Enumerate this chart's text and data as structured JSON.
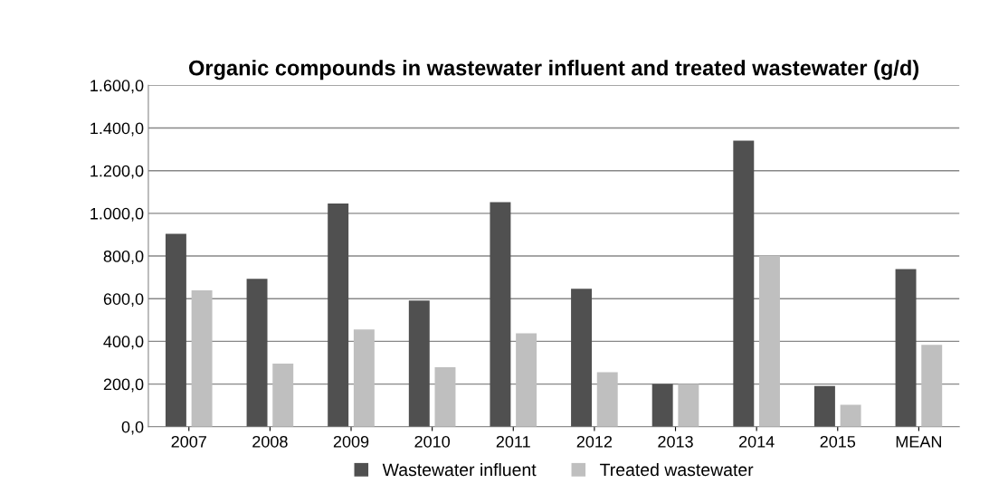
{
  "chart_data": {
    "type": "bar",
    "title": "Organic compounds in wastewater influent and treated wastewater (g/d)",
    "categories": [
      "2007",
      "2008",
      "2009",
      "2010",
      "2011",
      "2012",
      "2013",
      "2014",
      "2015",
      "MEAN"
    ],
    "series": [
      {
        "name": "Wastewater influent",
        "color": "#505050",
        "values": [
          904,
          693,
          1046,
          591,
          1052,
          647,
          200,
          1341,
          191,
          739
        ]
      },
      {
        "name": "Treated wastewater",
        "color": "#bfbfbf",
        "values": [
          639,
          296,
          456,
          279,
          438,
          255,
          200,
          801,
          103,
          384
        ]
      }
    ],
    "ylim": [
      0,
      1600
    ],
    "yticks": [
      {
        "value": 0,
        "label": "0,0"
      },
      {
        "value": 200,
        "label": "200,0"
      },
      {
        "value": 400,
        "label": "400,0"
      },
      {
        "value": 600,
        "label": "600,0"
      },
      {
        "value": 800,
        "label": "800,0"
      },
      {
        "value": 1000,
        "label": "1.000,0"
      },
      {
        "value": 1200,
        "label": "1.200,0"
      },
      {
        "value": 1400,
        "label": "1.400,0"
      },
      {
        "value": 1600,
        "label": "1.600,0"
      }
    ],
    "grid": "y",
    "legend": "bottom"
  }
}
